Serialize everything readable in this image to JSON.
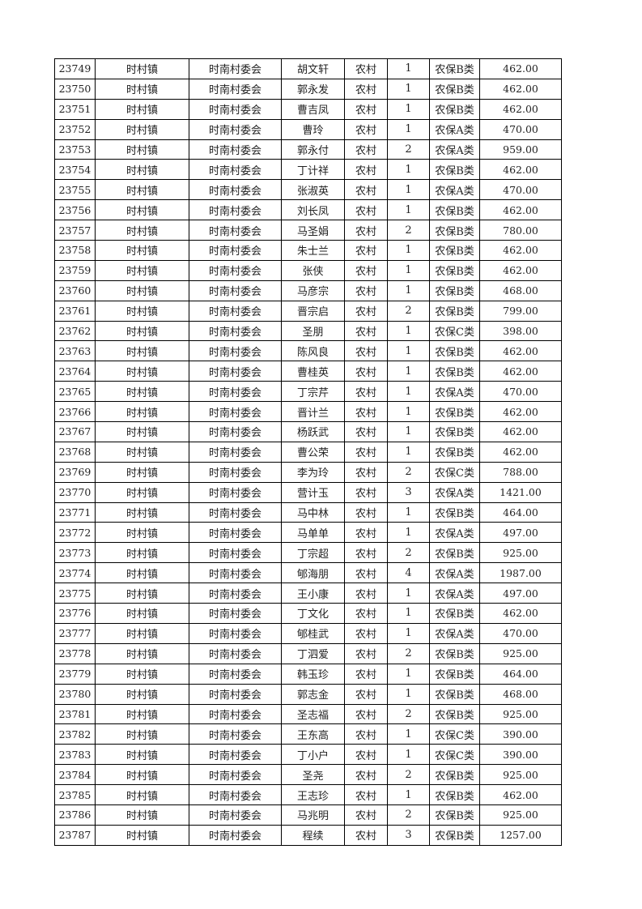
{
  "table": {
    "rows": [
      [
        "23749",
        "时村镇",
        "时南村委会",
        "胡文轩",
        "农村",
        "1",
        "农保B类",
        "462.00"
      ],
      [
        "23750",
        "时村镇",
        "时南村委会",
        "郭永发",
        "农村",
        "1",
        "农保B类",
        "462.00"
      ],
      [
        "23751",
        "时村镇",
        "时南村委会",
        "曹吉凤",
        "农村",
        "1",
        "农保B类",
        "462.00"
      ],
      [
        "23752",
        "时村镇",
        "时南村委会",
        "曹玲",
        "农村",
        "1",
        "农保A类",
        "470.00"
      ],
      [
        "23753",
        "时村镇",
        "时南村委会",
        "郭永付",
        "农村",
        "2",
        "农保A类",
        "959.00"
      ],
      [
        "23754",
        "时村镇",
        "时南村委会",
        "丁计祥",
        "农村",
        "1",
        "农保B类",
        "462.00"
      ],
      [
        "23755",
        "时村镇",
        "时南村委会",
        "张淑英",
        "农村",
        "1",
        "农保A类",
        "470.00"
      ],
      [
        "23756",
        "时村镇",
        "时南村委会",
        "刘长凤",
        "农村",
        "1",
        "农保B类",
        "462.00"
      ],
      [
        "23757",
        "时村镇",
        "时南村委会",
        "马圣娟",
        "农村",
        "2",
        "农保B类",
        "780.00"
      ],
      [
        "23758",
        "时村镇",
        "时南村委会",
        "朱士兰",
        "农村",
        "1",
        "农保B类",
        "462.00"
      ],
      [
        "23759",
        "时村镇",
        "时南村委会",
        "张侠",
        "农村",
        "1",
        "农保B类",
        "462.00"
      ],
      [
        "23760",
        "时村镇",
        "时南村委会",
        "马彦宗",
        "农村",
        "1",
        "农保B类",
        "468.00"
      ],
      [
        "23761",
        "时村镇",
        "时南村委会",
        "晋宗启",
        "农村",
        "2",
        "农保B类",
        "799.00"
      ],
      [
        "23762",
        "时村镇",
        "时南村委会",
        "圣朋",
        "农村",
        "1",
        "农保C类",
        "398.00"
      ],
      [
        "23763",
        "时村镇",
        "时南村委会",
        "陈风良",
        "农村",
        "1",
        "农保B类",
        "462.00"
      ],
      [
        "23764",
        "时村镇",
        "时南村委会",
        "曹桂英",
        "农村",
        "1",
        "农保B类",
        "462.00"
      ],
      [
        "23765",
        "时村镇",
        "时南村委会",
        "丁宗芹",
        "农村",
        "1",
        "农保A类",
        "470.00"
      ],
      [
        "23766",
        "时村镇",
        "时南村委会",
        "晋计兰",
        "农村",
        "1",
        "农保B类",
        "462.00"
      ],
      [
        "23767",
        "时村镇",
        "时南村委会",
        "杨跃武",
        "农村",
        "1",
        "农保B类",
        "462.00"
      ],
      [
        "23768",
        "时村镇",
        "时南村委会",
        "曹公荣",
        "农村",
        "1",
        "农保B类",
        "462.00"
      ],
      [
        "23769",
        "时村镇",
        "时南村委会",
        "李为玲",
        "农村",
        "2",
        "农保C类",
        "788.00"
      ],
      [
        "23770",
        "时村镇",
        "时南村委会",
        "营计玉",
        "农村",
        "3",
        "农保A类",
        "1421.00"
      ],
      [
        "23771",
        "时村镇",
        "时南村委会",
        "马中林",
        "农村",
        "1",
        "农保B类",
        "464.00"
      ],
      [
        "23772",
        "时村镇",
        "时南村委会",
        "马单单",
        "农村",
        "1",
        "农保A类",
        "497.00"
      ],
      [
        "23773",
        "时村镇",
        "时南村委会",
        "丁宗超",
        "农村",
        "2",
        "农保B类",
        "925.00"
      ],
      [
        "23774",
        "时村镇",
        "时南村委会",
        "郇海朋",
        "农村",
        "4",
        "农保A类",
        "1987.00"
      ],
      [
        "23775",
        "时村镇",
        "时南村委会",
        "王小康",
        "农村",
        "1",
        "农保A类",
        "497.00"
      ],
      [
        "23776",
        "时村镇",
        "时南村委会",
        "丁文化",
        "农村",
        "1",
        "农保B类",
        "462.00"
      ],
      [
        "23777",
        "时村镇",
        "时南村委会",
        "郇桂武",
        "农村",
        "1",
        "农保A类",
        "470.00"
      ],
      [
        "23778",
        "时村镇",
        "时南村委会",
        "丁泗爱",
        "农村",
        "2",
        "农保B类",
        "925.00"
      ],
      [
        "23779",
        "时村镇",
        "时南村委会",
        "韩玉珍",
        "农村",
        "1",
        "农保B类",
        "464.00"
      ],
      [
        "23780",
        "时村镇",
        "时南村委会",
        "郭志金",
        "农村",
        "1",
        "农保B类",
        "468.00"
      ],
      [
        "23781",
        "时村镇",
        "时南村委会",
        "圣志福",
        "农村",
        "2",
        "农保B类",
        "925.00"
      ],
      [
        "23782",
        "时村镇",
        "时南村委会",
        "王东高",
        "农村",
        "1",
        "农保C类",
        "390.00"
      ],
      [
        "23783",
        "时村镇",
        "时南村委会",
        "丁小户",
        "农村",
        "1",
        "农保C类",
        "390.00"
      ],
      [
        "23784",
        "时村镇",
        "时南村委会",
        "圣尧",
        "农村",
        "2",
        "农保B类",
        "925.00"
      ],
      [
        "23785",
        "时村镇",
        "时南村委会",
        "王志珍",
        "农村",
        "1",
        "农保B类",
        "462.00"
      ],
      [
        "23786",
        "时村镇",
        "时南村委会",
        "马兆明",
        "农村",
        "2",
        "农保B类",
        "925.00"
      ],
      [
        "23787",
        "时村镇",
        "时南村委会",
        "程续",
        "农村",
        "3",
        "农保B类",
        "1257.00"
      ]
    ]
  }
}
